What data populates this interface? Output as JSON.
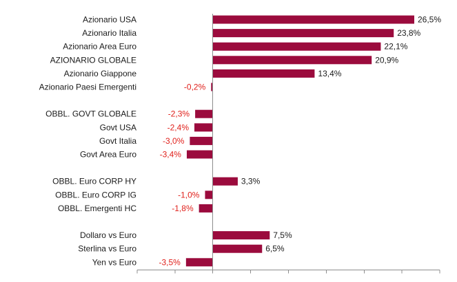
{
  "chart_data": {
    "type": "bar",
    "orientation": "horizontal",
    "title": "",
    "xlabel": "",
    "ylabel": "",
    "xlim": [
      -10,
      30
    ],
    "grid": false,
    "legend": "none",
    "categories": [
      "Azionario USA",
      "Azionario Italia",
      "Azionario Area Euro",
      "AZIONARIO GLOBALE",
      "Azionario Giappone",
      "Azionario Paesi Emergenti",
      "",
      "OBBL. GOVT GLOBALE",
      "Govt USA",
      "Govt Italia",
      "Govt Area Euro",
      "",
      "OBBL. Euro CORP HY",
      "OBBL. Euro CORP IG",
      "OBBL. Emergenti HC",
      "",
      "Dollaro vs Euro",
      "Sterlina vs Euro",
      "Yen vs Euro"
    ],
    "values": [
      26.5,
      23.8,
      22.1,
      20.9,
      13.4,
      -0.2,
      null,
      -2.3,
      -2.4,
      -3.0,
      -3.4,
      null,
      3.3,
      -1.0,
      -1.8,
      null,
      7.5,
      6.5,
      -3.5
    ],
    "value_labels": [
      "26,5%",
      "23,8%",
      "22,1%",
      "20,9%",
      "13,4%",
      "-0,2%",
      "",
      "-2,3%",
      "-2,4%",
      "-3,0%",
      "-3,4%",
      "",
      "3,3%",
      "-1,0%",
      "-1,8%",
      "",
      "7,5%",
      "6,5%",
      "-3,5%"
    ],
    "colors": {
      "bar": "#9b0b3d",
      "positive_label": "#1a1a1a",
      "negative_label": "#e0201b",
      "axis": "#8c8c8c"
    }
  }
}
